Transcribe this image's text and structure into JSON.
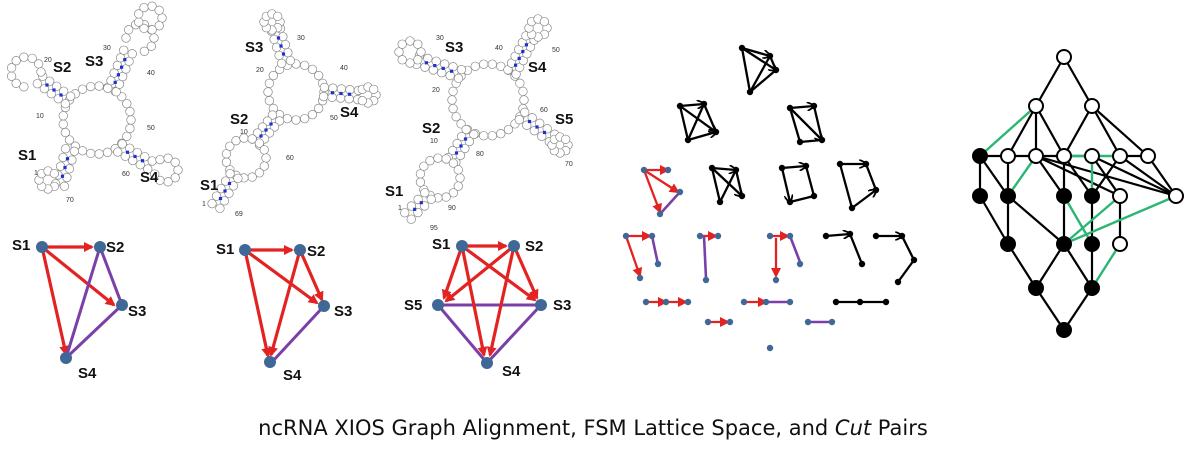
{
  "caption": {
    "prefix": "ncRNA XIOS Graph Alignment, FSM Lattice Space, and ",
    "emph": "Cut",
    "suffix": " Pairs"
  },
  "colors": {
    "red": "#e32222",
    "purple": "#7b3fa8",
    "node": "#3f6896",
    "green": "#2bb673",
    "base": "#1f2fd0",
    "black": "#000000"
  },
  "panel1": {
    "stems": [
      "S1",
      "S2",
      "S3",
      "S4"
    ],
    "numbers": [
      "1",
      "10",
      "20",
      "30",
      "40",
      "50",
      "60",
      "70"
    ],
    "graph_nodes": [
      "S1",
      "S2",
      "S3",
      "S4"
    ]
  },
  "panel2": {
    "stems": [
      "S1",
      "S2",
      "S3",
      "S4"
    ],
    "numbers": [
      "1",
      "10",
      "20",
      "30",
      "40",
      "50",
      "60",
      "69"
    ],
    "graph_nodes": [
      "S1",
      "S2",
      "S3",
      "S4"
    ]
  },
  "panel3": {
    "stems": [
      "S1",
      "S2",
      "S3",
      "S4",
      "S5"
    ],
    "numbers": [
      "1",
      "10",
      "20",
      "30",
      "40",
      "50",
      "60",
      "70",
      "80",
      "90",
      "95"
    ],
    "graph_nodes": [
      "S1",
      "S2",
      "S3",
      "S4",
      "S5"
    ]
  }
}
